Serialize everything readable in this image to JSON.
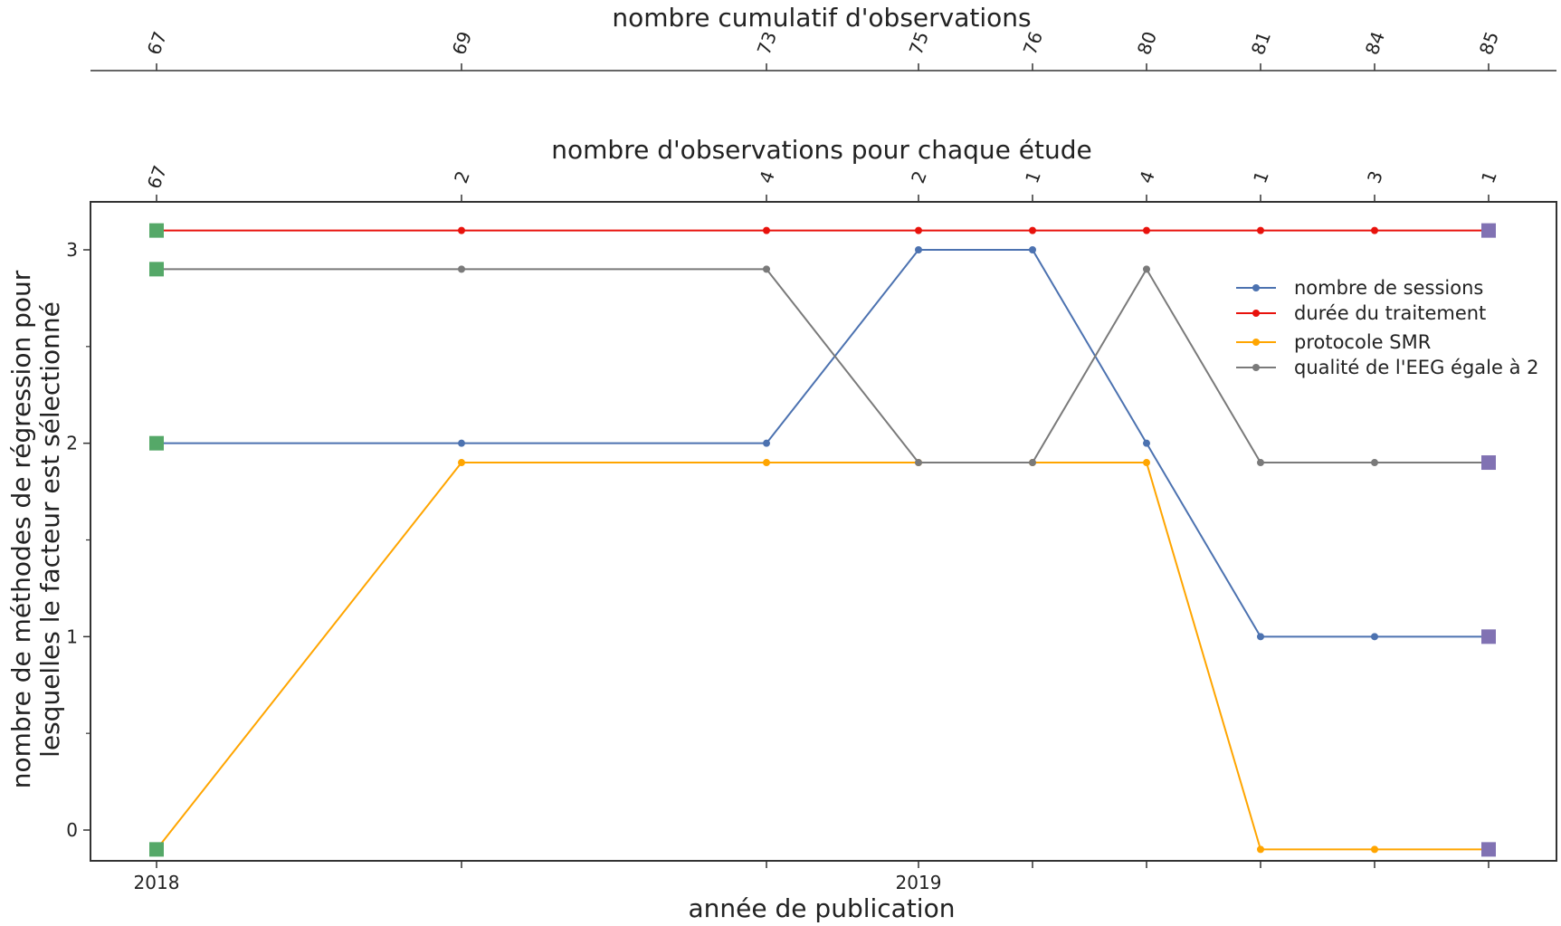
{
  "chart_data": {
    "type": "line",
    "xlabel": "année de publication",
    "ylabel_lines": [
      "nombre de méthodes de régression pour",
      "lesquelles le facteur est sélectionné"
    ],
    "top_axis_1_label": "nombre d'observations pour chaque étude",
    "top_axis_2_label": "nombre cumulatif d'observations",
    "bottom_tick_labels": [
      "2018",
      "",
      "",
      "2019",
      "",
      "",
      "",
      "",
      ""
    ],
    "observations_per_study": [
      "67",
      "2",
      "4",
      "2",
      "1",
      "4",
      "1",
      "3",
      "1"
    ],
    "cumulative_observations": [
      "67",
      "69",
      "73",
      "75",
      "76",
      "80",
      "81",
      "84",
      "85"
    ],
    "y_ticks": [
      0,
      1,
      2,
      3
    ],
    "ylim": [
      -0.15,
      3.25
    ],
    "grid": false,
    "legend_position": "upper-right",
    "series": [
      {
        "name": "nombre de sessions",
        "color": "#4c72b0",
        "values": [
          2,
          2,
          2,
          3,
          3,
          2,
          1,
          1,
          1
        ],
        "display_offset": 0
      },
      {
        "name": "durée du traitement",
        "color": "#e8120c",
        "values": [
          3,
          3,
          3,
          3,
          3,
          3,
          3,
          3,
          3
        ],
        "display_offset": 0.1
      },
      {
        "name": "protocole SMR",
        "color": "#ffa500",
        "values": [
          0,
          2,
          2,
          2,
          2,
          2,
          0,
          0,
          0
        ],
        "display_offset": -0.1
      },
      {
        "name": "qualité de l'EEG égale à 2",
        "color": "#7a7a7a",
        "values": [
          3,
          3,
          3,
          2,
          2,
          3,
          2,
          2,
          2
        ],
        "display_offset": -0.1
      }
    ],
    "start_marker_color": "#55a868",
    "end_marker_color": "#8172b3"
  }
}
